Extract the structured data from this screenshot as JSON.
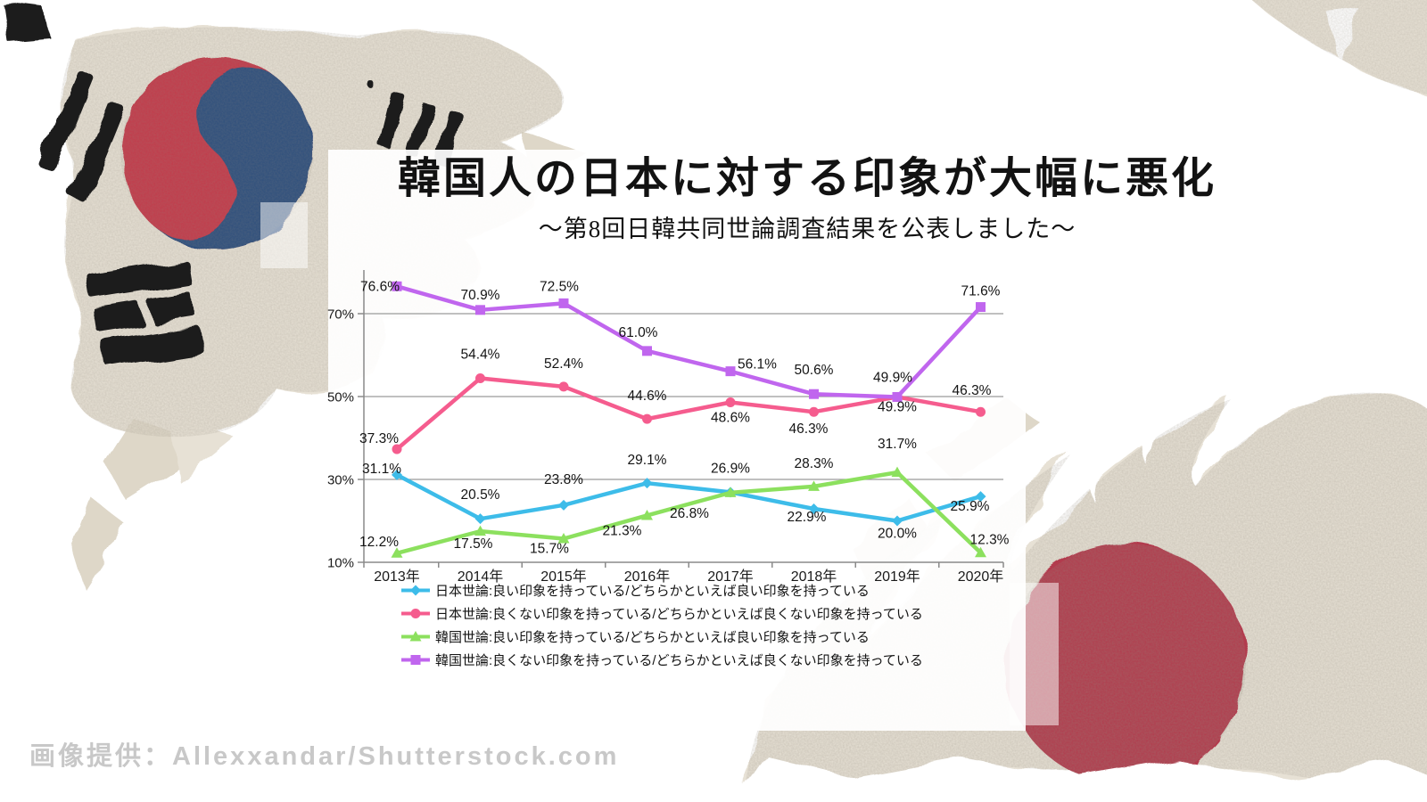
{
  "header": {
    "title": "韓国人の日本に対する印象が大幅に悪化",
    "subtitle": "～第8回日韓共同世論調査結果を公表しました～"
  },
  "watermark": "画像提供：Allexxandar/Shutterstock.com",
  "art": {
    "paper_beige": "#e7e1d5",
    "paper_beige_dark": "#d9d2c3",
    "ink_black": "#1f1f1f",
    "korea_red": "#c23b4c",
    "korea_blue": "#2f4f7d",
    "japan_red": "#b23a4e"
  },
  "chart_data": {
    "type": "line",
    "categories": [
      "2013年",
      "2014年",
      "2015年",
      "2016年",
      "2017年",
      "2018年",
      "2019年",
      "2020年"
    ],
    "ylim": [
      10,
      80
    ],
    "grid": true,
    "legend_position": "bottom",
    "value_suffix": "%",
    "y_ticks": [
      {
        "label": "70%",
        "value": 70
      },
      {
        "label": "50%",
        "value": 50
      },
      {
        "label": "30%",
        "value": 30
      },
      {
        "label": "10%",
        "value": 10
      }
    ],
    "series": [
      {
        "name": "日本世論:良い印象を持っている/どちらかといえば良い印象を持っている",
        "color": "#3dbce9",
        "marker": "diamond",
        "values": [
          31.1,
          20.5,
          23.8,
          29.1,
          26.9,
          22.9,
          20.0,
          25.9
        ]
      },
      {
        "name": "日本世論:良くない印象を持っている/どちらかといえば良くない印象を持っている",
        "color": "#f55c8e",
        "marker": "circle",
        "values": [
          37.3,
          54.4,
          52.4,
          44.6,
          48.6,
          46.3,
          49.9,
          46.3
        ]
      },
      {
        "name": "韓国世論:良い印象を持っている/どちらかといえば良い印象を持っている",
        "color": "#8ce05e",
        "marker": "triangle",
        "values": [
          12.2,
          17.5,
          15.7,
          21.3,
          26.8,
          28.3,
          31.7,
          12.3
        ]
      },
      {
        "name": "韓国世論:良くない印象を持っている/どちらかといえば良くない印象を持っている",
        "color": "#c066ee",
        "marker": "square",
        "values": [
          76.6,
          70.9,
          72.5,
          61.0,
          56.1,
          50.6,
          49.9,
          71.6
        ]
      }
    ]
  }
}
